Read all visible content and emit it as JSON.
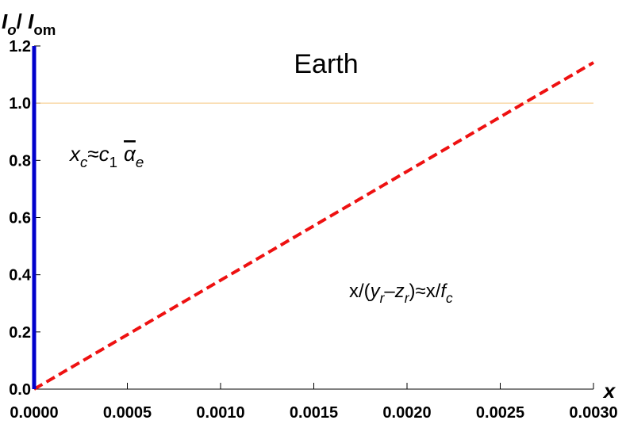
{
  "chart_data": {
    "type": "line",
    "title": "Earth",
    "x_label": "x",
    "y_label": [
      {
        "text": "I",
        "italic": true
      },
      {
        "text": "o",
        "italic": true,
        "sub": true
      },
      {
        "text": "/ "
      },
      {
        "text": "I",
        "italic": true
      },
      {
        "text": "om",
        "sub": true
      }
    ],
    "xlim": [
      0,
      0.003
    ],
    "ylim": [
      0,
      1.2
    ],
    "xticks": [
      {
        "value": 0,
        "label": "0.0000"
      },
      {
        "value": 0.0005,
        "label": "0.0005"
      },
      {
        "value": 0.001,
        "label": "0.0010"
      },
      {
        "value": 0.0015,
        "label": "0.0015"
      },
      {
        "value": 0.002,
        "label": "0.0020"
      },
      {
        "value": 0.0025,
        "label": "0.0025"
      },
      {
        "value": 0.003,
        "label": "0.0030"
      }
    ],
    "yticks": [
      {
        "value": 0,
        "label": "0.0"
      },
      0.2,
      0.4,
      0.6,
      0.8,
      {
        "value": 1,
        "label": "1.0"
      },
      1.2
    ],
    "series": [
      {
        "color": "#f5c77e",
        "style": "solid",
        "line_width": 1,
        "x": [
          0,
          0.003
        ],
        "values": [
          1,
          1
        ]
      },
      {
        "color": "#ee1111",
        "style": "dashed",
        "line_width": 4,
        "x": [
          0,
          0.003
        ],
        "values": [
          0,
          1.142
        ]
      },
      {
        "color": "#0000cc",
        "style": "solid",
        "line_width": 5,
        "x": [
          0,
          0
        ],
        "values": [
          0,
          1.2
        ]
      }
    ],
    "annotations": [
      [
        {
          "text": "x",
          "italic": true
        },
        {
          "text": "c",
          "italic": true,
          "sub": true
        },
        {
          "text": "≈"
        },
        {
          "text": "c",
          "italic": true
        },
        {
          "text": "1",
          "sub": true
        },
        {
          "text": "α",
          "italic": true,
          "overline": true
        },
        {
          "text": "e",
          "italic": true,
          "sub": true
        }
      ],
      [
        {
          "text": "x/("
        },
        {
          "text": "y",
          "italic": true
        },
        {
          "text": "r",
          "italic": true,
          "sub": true
        },
        {
          "text": "–"
        },
        {
          "text": "z",
          "italic": true
        },
        {
          "text": "r",
          "italic": true,
          "sub": true
        },
        {
          "text": ")≈x/"
        },
        {
          "text": "f",
          "italic": true
        },
        {
          "text": "c",
          "italic": true,
          "sub": true
        }
      ]
    ]
  }
}
